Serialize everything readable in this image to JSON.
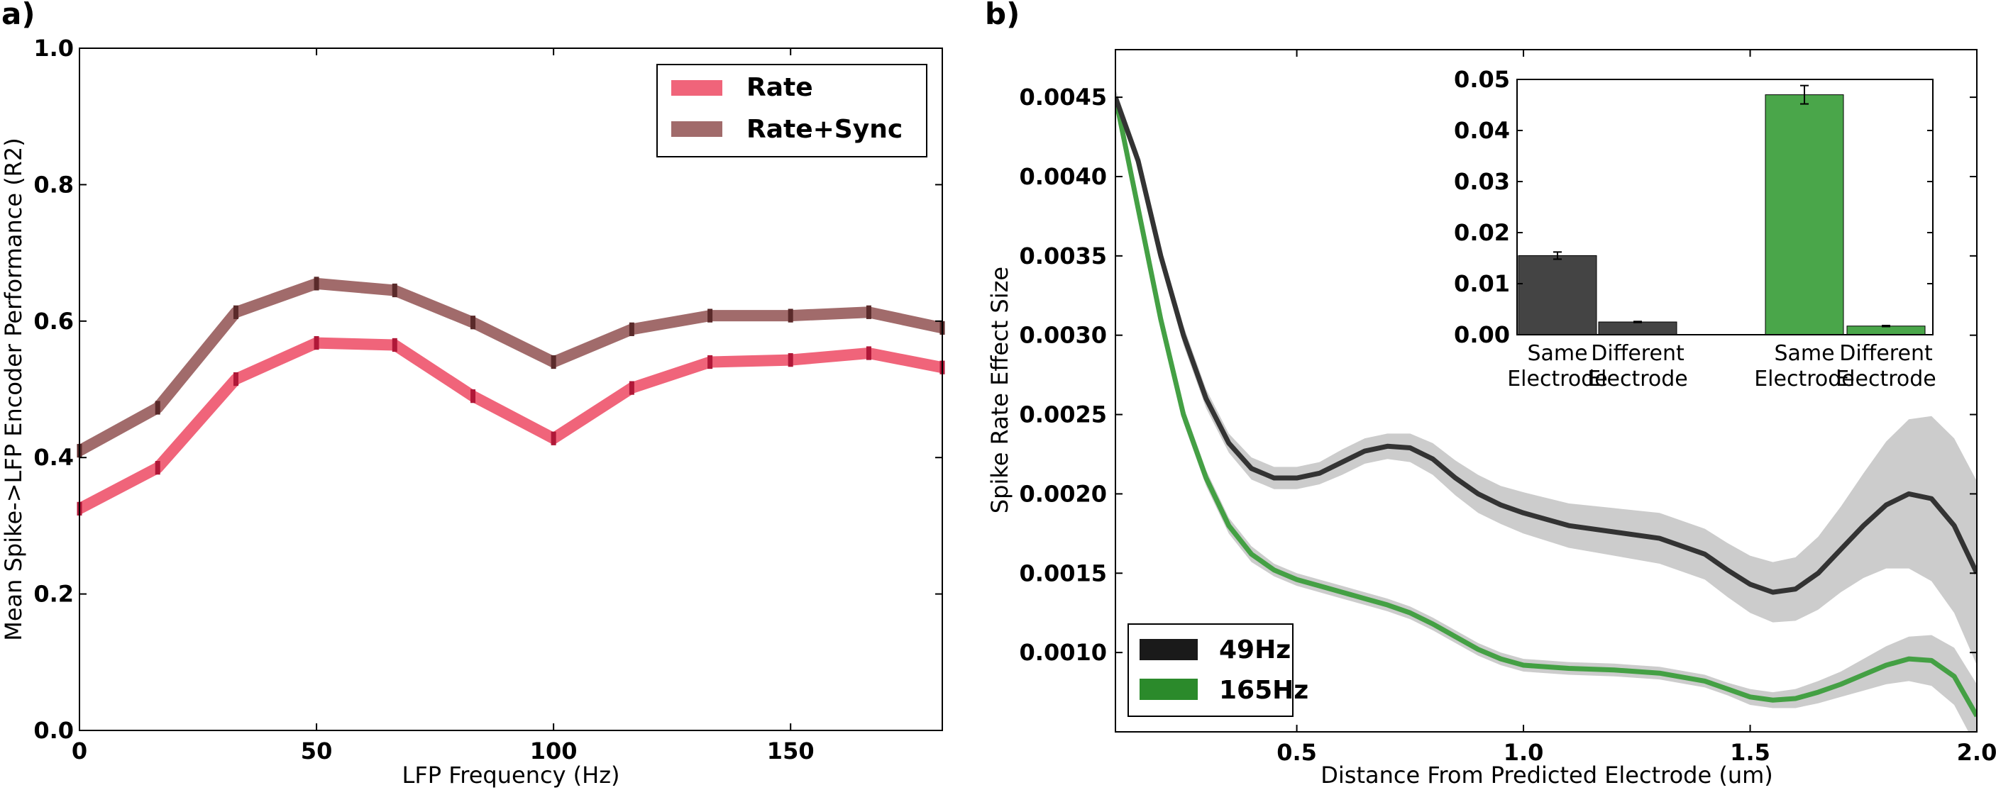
{
  "panels": {
    "a": {
      "label": "a)"
    },
    "b": {
      "label": "b)"
    }
  },
  "chart_data": [
    {
      "id": "a",
      "type": "line",
      "xlabel": "LFP Frequency (Hz)",
      "ylabel": "Mean Spike->LFP Encoder Performance (R2)",
      "xlim": [
        0,
        182
      ],
      "ylim": [
        0.0,
        1.0
      ],
      "xticks": [
        0,
        50,
        100,
        150
      ],
      "yticks": [
        0.0,
        0.2,
        0.4,
        0.6,
        0.8,
        1.0
      ],
      "xtick_labels": [
        "0",
        "50",
        "100",
        "150"
      ],
      "ytick_labels": [
        "0.0",
        "0.2",
        "0.4",
        "0.6",
        "0.8",
        "1.0"
      ],
      "legend": {
        "placement": "top-right",
        "entries": [
          "Rate",
          "Rate+Sync"
        ]
      },
      "grid": false,
      "x": [
        0,
        16.5,
        33,
        50,
        66.5,
        83,
        100,
        116.5,
        133,
        150,
        166.5,
        182
      ],
      "series": [
        {
          "name": "Rate",
          "color": "#f0647a",
          "errcolor": "#b01838",
          "values": [
            0.325,
            0.385,
            0.515,
            0.568,
            0.565,
            0.49,
            0.428,
            0.502,
            0.54,
            0.543,
            0.553,
            0.532
          ],
          "errors": [
            0.01,
            0.01,
            0.01,
            0.01,
            0.01,
            0.01,
            0.01,
            0.01,
            0.01,
            0.01,
            0.01,
            0.01
          ]
        },
        {
          "name": "Rate+Sync",
          "color": "#a16b6b",
          "errcolor": "#5a2a2a",
          "values": [
            0.41,
            0.473,
            0.613,
            0.655,
            0.645,
            0.598,
            0.54,
            0.588,
            0.608,
            0.608,
            0.613,
            0.59
          ],
          "errors": [
            0.01,
            0.01,
            0.01,
            0.01,
            0.01,
            0.01,
            0.01,
            0.01,
            0.01,
            0.01,
            0.01,
            0.01
          ]
        }
      ]
    },
    {
      "id": "b",
      "type": "line",
      "xlabel": "Distance From Predicted Electrode (um)",
      "ylabel": "Spike Rate Effect Size",
      "xlim": [
        0.1,
        2.0
      ],
      "ylim": [
        0.0005,
        0.0048
      ],
      "xticks": [
        0.5,
        1.0,
        1.5,
        2.0
      ],
      "yticks": [
        0.001,
        0.0015,
        0.002,
        0.0025,
        0.003,
        0.0035,
        0.004,
        0.0045
      ],
      "xtick_labels": [
        "0.5",
        "1.0",
        "1.5",
        "2.0"
      ],
      "ytick_labels": [
        "0.0010",
        "0.0015",
        "0.0020",
        "0.0025",
        "0.0030",
        "0.0035",
        "0.0040",
        "0.0045"
      ],
      "legend": {
        "placement": "bottom-left",
        "entries": [
          "49Hz",
          "165Hz"
        ]
      },
      "grid": false,
      "band_color": "#cccccc",
      "series": [
        {
          "name": "49Hz",
          "color": "#333333",
          "legend_color": "#1a1a1a",
          "x": [
            0.1,
            0.15,
            0.2,
            0.25,
            0.3,
            0.35,
            0.4,
            0.45,
            0.5,
            0.55,
            0.6,
            0.65,
            0.7,
            0.75,
            0.8,
            0.85,
            0.9,
            0.95,
            1.0,
            1.1,
            1.2,
            1.3,
            1.4,
            1.45,
            1.5,
            1.55,
            1.6,
            1.65,
            1.7,
            1.75,
            1.8,
            1.85,
            1.9,
            1.95,
            2.0
          ],
          "values": [
            0.0045,
            0.0041,
            0.0035,
            0.003,
            0.0026,
            0.00232,
            0.00216,
            0.0021,
            0.0021,
            0.00213,
            0.0022,
            0.00227,
            0.0023,
            0.00229,
            0.00222,
            0.0021,
            0.002,
            0.00193,
            0.00188,
            0.0018,
            0.00176,
            0.00172,
            0.00162,
            0.00152,
            0.00143,
            0.00138,
            0.0014,
            0.0015,
            0.00165,
            0.0018,
            0.00193,
            0.002,
            0.00197,
            0.0018,
            0.0015
          ],
          "errors": [
            5e-05,
            5e-05,
            5e-05,
            6e-05,
            6e-05,
            6e-05,
            7e-05,
            7e-05,
            7e-05,
            7e-05,
            8e-05,
            8e-05,
            8e-05,
            9e-05,
            0.0001,
            0.00011,
            0.00012,
            0.00012,
            0.00013,
            0.00014,
            0.00015,
            0.00016,
            0.00016,
            0.00017,
            0.00018,
            0.00019,
            0.0002,
            0.00023,
            0.00027,
            0.00033,
            0.0004,
            0.00047,
            0.00052,
            0.00055,
            0.00058
          ]
        },
        {
          "name": "165Hz",
          "color": "#44a044",
          "legend_color": "#2b8a2b",
          "x": [
            0.1,
            0.15,
            0.2,
            0.25,
            0.3,
            0.35,
            0.4,
            0.45,
            0.5,
            0.55,
            0.6,
            0.65,
            0.7,
            0.75,
            0.8,
            0.85,
            0.9,
            0.95,
            1.0,
            1.1,
            1.2,
            1.3,
            1.4,
            1.45,
            1.5,
            1.55,
            1.6,
            1.65,
            1.7,
            1.75,
            1.8,
            1.85,
            1.9,
            1.95,
            2.0
          ],
          "values": [
            0.0045,
            0.0038,
            0.0031,
            0.0025,
            0.0021,
            0.0018,
            0.00162,
            0.00152,
            0.00146,
            0.00142,
            0.00138,
            0.00134,
            0.0013,
            0.00125,
            0.00118,
            0.0011,
            0.00102,
            0.00096,
            0.00092,
            0.0009,
            0.00089,
            0.00087,
            0.00082,
            0.00077,
            0.00072,
            0.0007,
            0.00071,
            0.00075,
            0.0008,
            0.00086,
            0.00092,
            0.00096,
            0.00095,
            0.00085,
            0.0006
          ],
          "errors": [
            5e-05,
            5e-05,
            5e-05,
            5e-05,
            5e-05,
            5e-05,
            5e-05,
            4e-05,
            4e-05,
            4e-05,
            4e-05,
            4e-05,
            4e-05,
            4e-05,
            4e-05,
            4e-05,
            4e-05,
            4e-05,
            4e-05,
            4e-05,
            4e-05,
            4e-05,
            4e-05,
            4e-05,
            5e-05,
            5e-05,
            6e-05,
            7e-05,
            8e-05,
            0.0001,
            0.00012,
            0.00014,
            0.00016,
            0.00018,
            0.0002
          ]
        }
      ]
    },
    {
      "id": "b-inset",
      "type": "bar",
      "ylim": [
        0.0,
        0.05
      ],
      "yticks": [
        0.0,
        0.01,
        0.02,
        0.03,
        0.04,
        0.05
      ],
      "ytick_labels": [
        "0.00",
        "0.01",
        "0.02",
        "0.03",
        "0.04",
        "0.05"
      ],
      "categories": [
        [
          "Same",
          "Electrode"
        ],
        [
          "Different",
          "Electrode"
        ],
        [
          "Same",
          "Electrode"
        ],
        [
          "Different",
          "Electrode"
        ]
      ],
      "values": [
        0.0155,
        0.0025,
        0.047,
        0.0017
      ],
      "errors": [
        0.0007,
        0.0001,
        0.0018,
        0.0001
      ],
      "colors": [
        "#444444",
        "#444444",
        "#4aa64a",
        "#4aa64a"
      ]
    }
  ]
}
